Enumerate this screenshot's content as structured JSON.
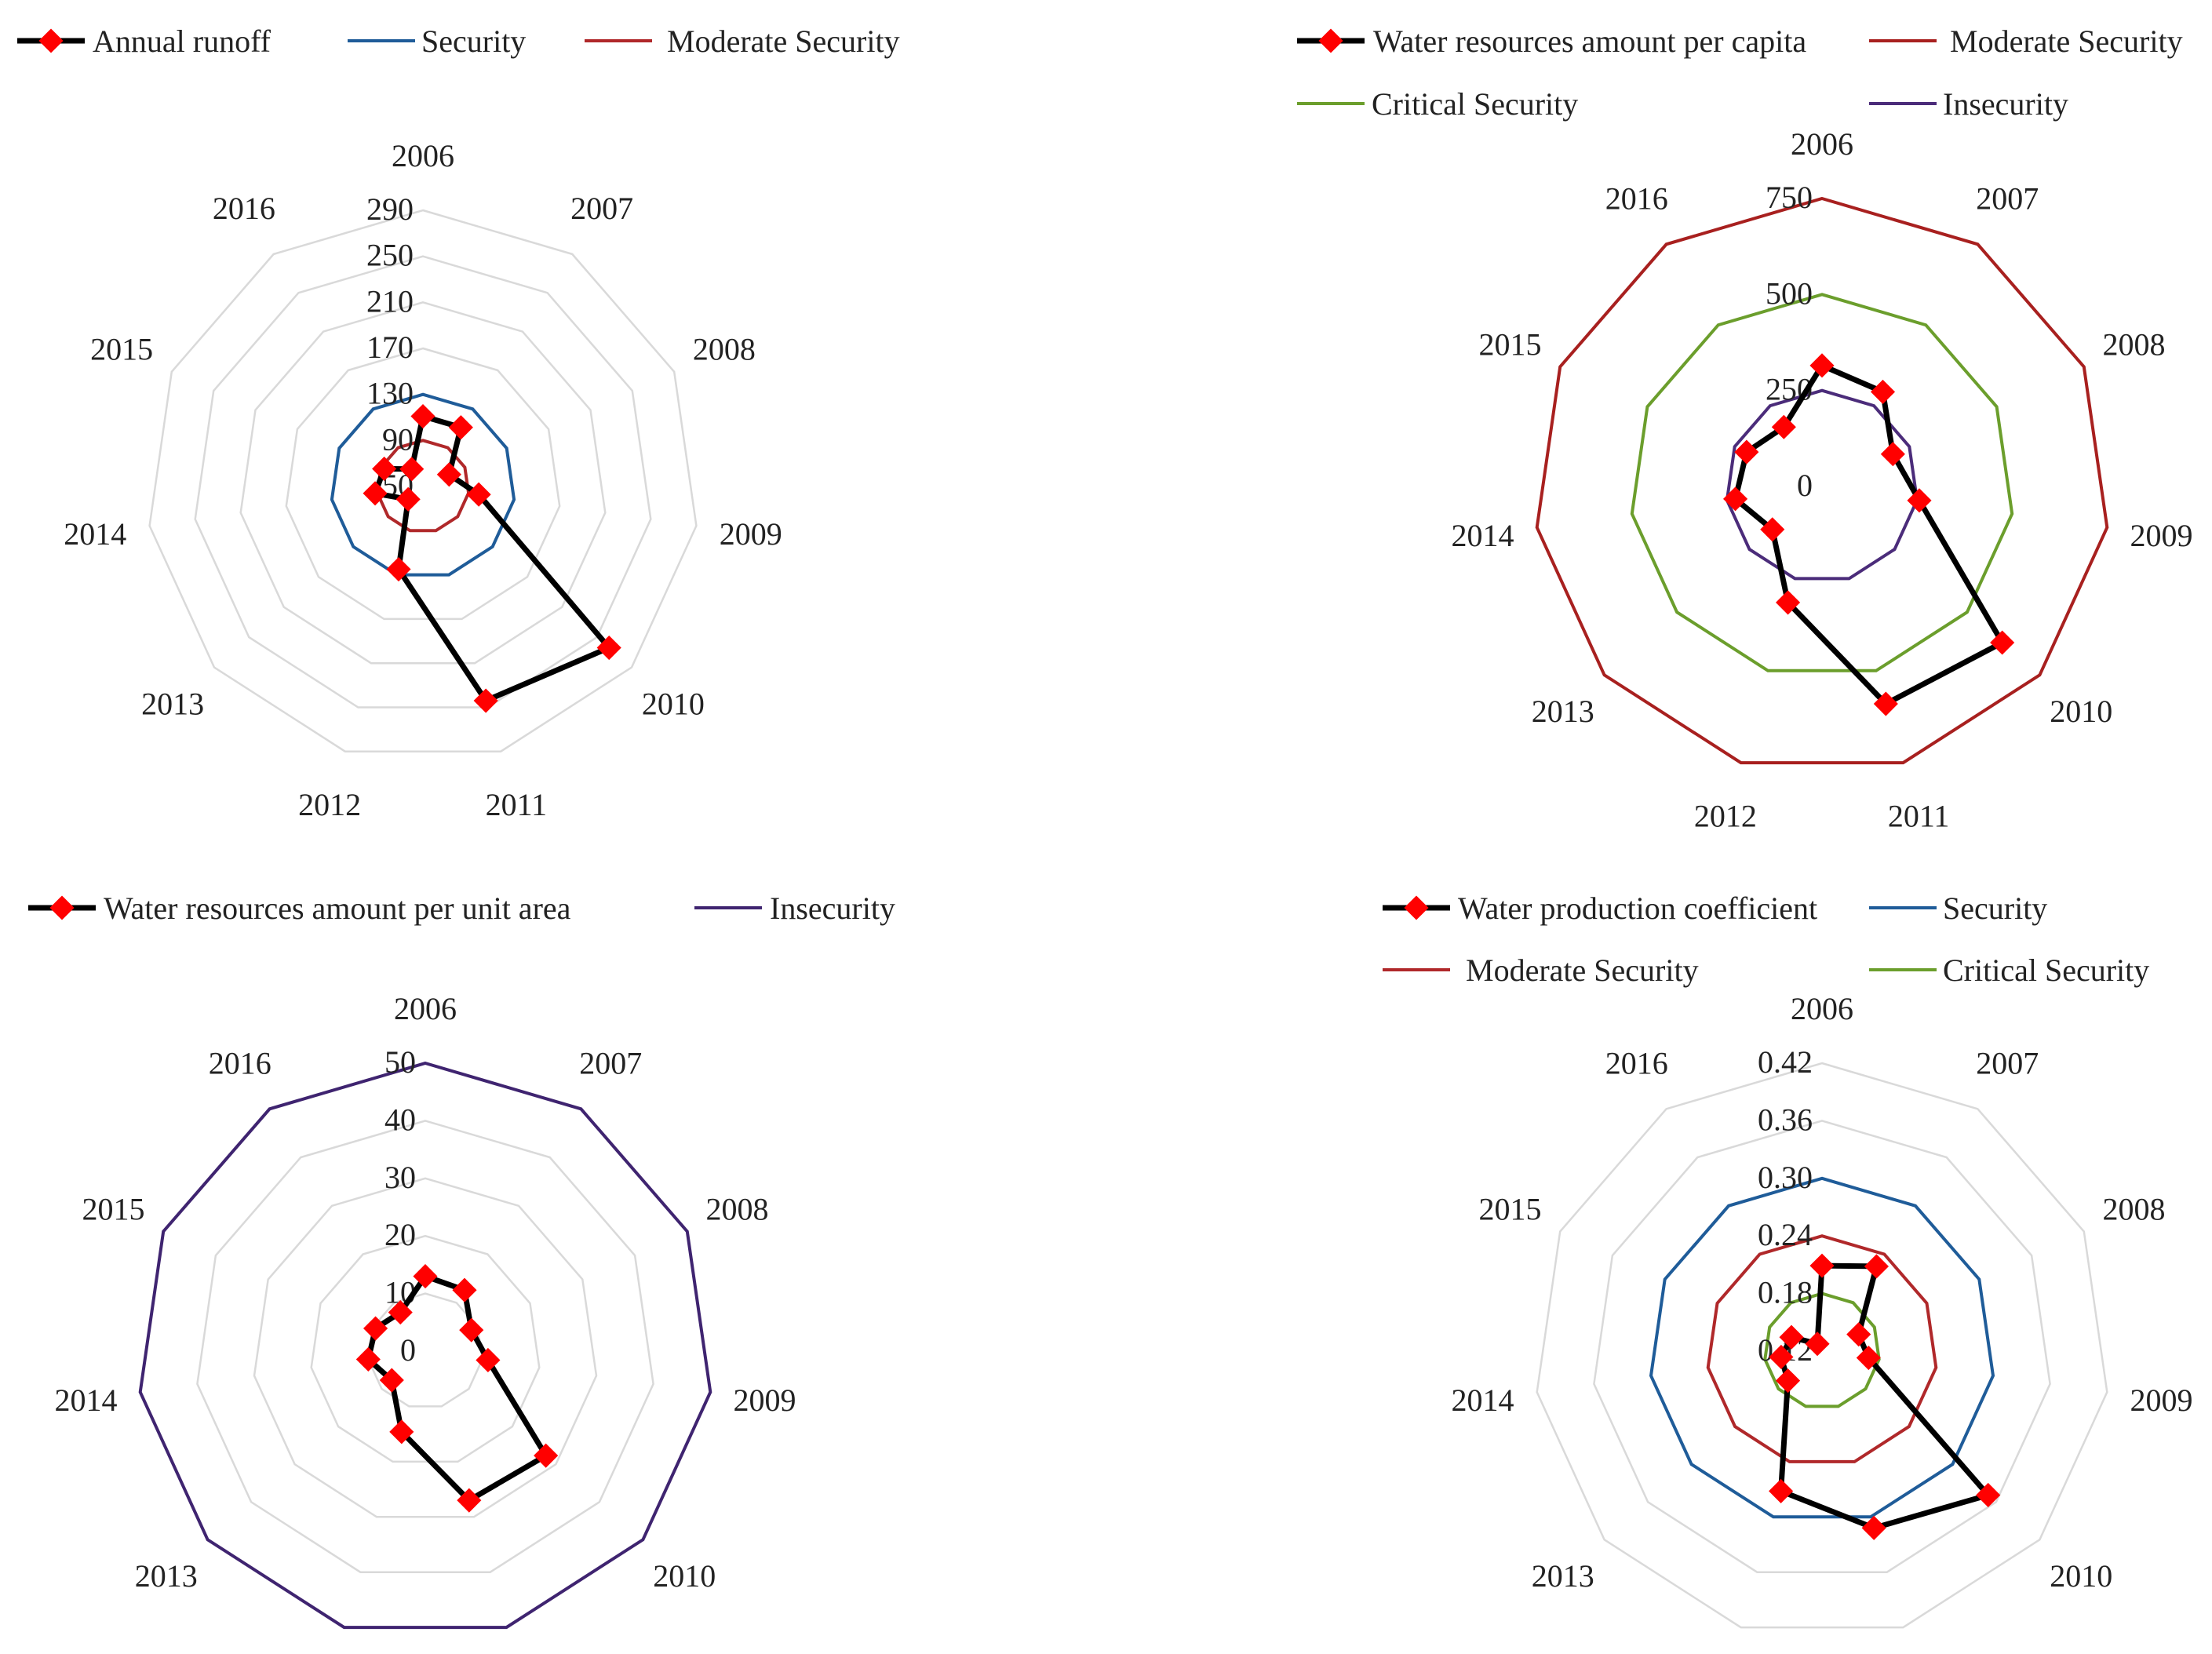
{
  "chart_data": [
    {
      "type": "radar",
      "title": "",
      "categories": [
        "2006",
        "2007",
        "2008",
        "2009",
        "2010",
        "2011",
        "2012",
        "2013",
        "2014",
        "2015",
        "2016"
      ],
      "rlim": [
        50,
        290
      ],
      "ticks": [
        "50",
        "90",
        "130",
        "170",
        "210",
        "250",
        "290"
      ],
      "tick_values": [
        50,
        90,
        130,
        170,
        210,
        250,
        290
      ],
      "series": [
        {
          "name": "Annual runoff",
          "values": [
            111,
            111,
            75,
            99,
            264,
            244,
            125,
            67,
            92,
            87,
            68
          ],
          "color": "#000000",
          "marker": "#ff0000"
        }
      ],
      "reference_lines": [
        {
          "name": "Security",
          "value": 130,
          "color": "#1f5c99"
        },
        {
          "name": "Moderate Security",
          "value": 90,
          "color": "#b0282a"
        }
      ],
      "legend": [
        "Annual runoff",
        "Security",
        "Moderate Security"
      ],
      "legend_position": "top"
    },
    {
      "type": "radar",
      "title": "",
      "categories": [
        "2006",
        "2007",
        "2008",
        "2009",
        "2010",
        "2011",
        "2012",
        "2013",
        "2014",
        "2015",
        "2016"
      ],
      "rlim": [
        0,
        750
      ],
      "ticks": [
        "0",
        "250",
        "500",
        "750"
      ],
      "tick_values": [
        0,
        250,
        500,
        750
      ],
      "series": [
        {
          "name": "Water resources amount per capita",
          "values": [
            315,
            293,
            203,
            256,
            621,
            590,
            315,
            171,
            228,
            216,
            184
          ],
          "color": "#000000",
          "marker": "#ff0000"
        }
      ],
      "reference_lines": [
        {
          "name": "Moderate Security",
          "value": 750,
          "color": "#a8201f"
        },
        {
          "name": "Critical Security",
          "value": 500,
          "color": "#6b9e2c"
        },
        {
          "name": "Insecurity",
          "value": 250,
          "color": "#4b2c7a"
        }
      ],
      "legend": [
        "Water resources amount per capita",
        "Moderate Security",
        "Critical Security",
        "Insecurity"
      ],
      "legend_position": "top"
    },
    {
      "type": "radar",
      "title": "",
      "categories": [
        "2006",
        "2007",
        "2008",
        "2009",
        "2010",
        "2011",
        "2012",
        "2013",
        "2014",
        "2015",
        "2016"
      ],
      "rlim": [
        0,
        50
      ],
      "ticks": [
        "0",
        "10",
        "20",
        "30",
        "40",
        "50"
      ],
      "tick_values": [
        0,
        10,
        20,
        30,
        40,
        50
      ],
      "series": [
        {
          "name": "Water resources amount per unit area",
          "values": [
            13,
            12.6,
            8.8,
            11,
            27.7,
            27,
            14.6,
            7.7,
            10,
            9.5,
            8
          ],
          "color": "#000000",
          "marker": "#ff0000"
        }
      ],
      "reference_lines": [
        {
          "name": "Insecurity",
          "value": 50,
          "color": "#3f2470"
        }
      ],
      "legend": [
        "Water resources amount per unit area",
        "Insecurity"
      ],
      "legend_position": "top"
    },
    {
      "type": "radar",
      "title": "",
      "categories": [
        "2006",
        "2007",
        "2008",
        "2009",
        "2010",
        "2011",
        "2012",
        "2013",
        "2014",
        "2015",
        "2016"
      ],
      "rlim": [
        0.12,
        0.42
      ],
      "ticks": [
        "0.12",
        "0.18",
        "0.24",
        "0.30",
        "0.36",
        "0.42"
      ],
      "tick_values": [
        0.12,
        0.18,
        0.24,
        0.3,
        0.36,
        0.42
      ],
      "series": [
        {
          "name": "Water production coefficient",
          "values": [
            0.209,
            0.225,
            0.162,
            0.169,
            0.349,
            0.312,
            0.272,
            0.167,
            0.163,
            0.155,
            0.129
          ],
          "color": "#000000",
          "marker": "#ff0000"
        }
      ],
      "reference_lines": [
        {
          "name": "Security",
          "value": 0.3,
          "color": "#1f5c99"
        },
        {
          "name": "Moderate Security",
          "value": 0.24,
          "color": "#b0282a"
        },
        {
          "name": "Critical Security",
          "value": 0.18,
          "color": "#6b9e2c"
        }
      ],
      "legend": [
        "Water production coefficient",
        "Security",
        "Moderate Security",
        "Critical Security"
      ],
      "legend_position": "top"
    }
  ]
}
